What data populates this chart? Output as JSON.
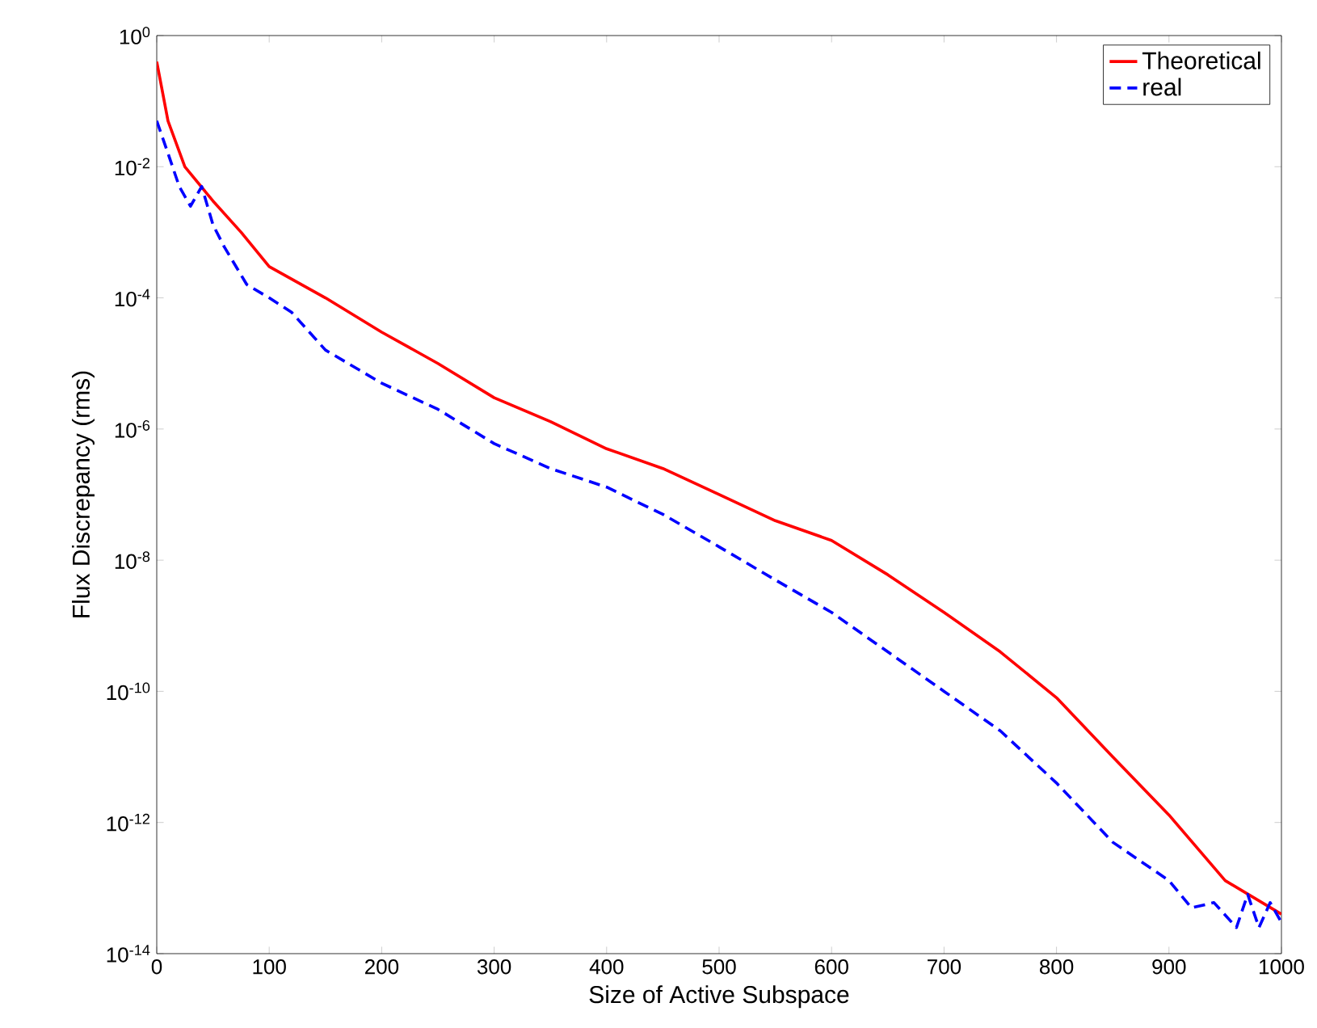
{
  "chart_data": {
    "type": "line",
    "xlabel": "Size of Active Subspace",
    "ylabel": "Flux Discrepancy (rms)",
    "log": "y",
    "legend": "top right",
    "grid": false,
    "xlim": [
      0,
      1000
    ],
    "xticks": [
      0,
      100,
      200,
      300,
      400,
      500,
      600,
      700,
      800,
      900,
      1000
    ],
    "ylim": [
      1e-14,
      1
    ],
    "yticks": [
      {
        "value": 1e-14,
        "label": "10$^{-14}$"
      },
      {
        "value": 1e-12,
        "label": "10$^{-12}$"
      },
      {
        "value": 1e-10,
        "label": "10$^{-10}$"
      },
      {
        "value": 1e-08,
        "label": "10$^{-8}$"
      },
      {
        "value": 1e-06,
        "label": "10$^{-6}$"
      },
      {
        "value": 0.0001,
        "label": "10$^{-4}$"
      },
      {
        "value": 0.01,
        "label": "10$^{-2}$"
      },
      {
        "value": 1,
        "label": "10$^{0}$"
      }
    ],
    "series": [
      {
        "name": "Theoretical",
        "color": "#ff0000",
        "line_style": "solid",
        "x": [
          0,
          10,
          25,
          50,
          75,
          100,
          150,
          200,
          250,
          300,
          350,
          400,
          450,
          500,
          550,
          600,
          650,
          700,
          750,
          800,
          850,
          900,
          950,
          1000
        ],
        "values": [
          0.4,
          0.05,
          0.01,
          0.003,
          0.001,
          0.0003,
          0.0001,
          3e-05,
          1e-05,
          3e-06,
          1.3e-06,
          5e-07,
          2.5e-07,
          1e-07,
          4e-08,
          2e-08,
          6e-09,
          1.6e-09,
          4e-10,
          8e-11,
          1e-11,
          1.3e-12,
          1.3e-13,
          4e-14
        ]
      },
      {
        "name": "real",
        "color": "#0000ff",
        "line_style": "dashed",
        "x": [
          0,
          10,
          20,
          30,
          40,
          50,
          60,
          80,
          100,
          120,
          150,
          200,
          250,
          300,
          350,
          400,
          450,
          500,
          550,
          600,
          650,
          700,
          750,
          800,
          850,
          900,
          920,
          940,
          960,
          970,
          980,
          990,
          1000
        ],
        "values": [
          0.05,
          0.016,
          0.005,
          0.0025,
          0.005,
          0.0013,
          0.0006,
          0.00016,
          0.0001,
          6e-05,
          1.6e-05,
          5e-06,
          2e-06,
          6e-07,
          2.5e-07,
          1.3e-07,
          5e-08,
          1.6e-08,
          5e-09,
          1.6e-09,
          4e-10,
          1e-10,
          2.5e-11,
          4e-12,
          5e-13,
          1.3e-13,
          5e-14,
          6e-14,
          2.5e-14,
          8e-14,
          2.5e-14,
          6e-14,
          3e-14
        ]
      }
    ]
  }
}
